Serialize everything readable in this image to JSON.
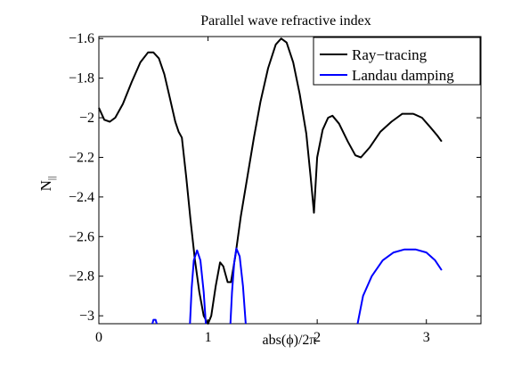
{
  "chart_data": {
    "type": "line",
    "title": "Parallel wave refractive index",
    "xlabel": "abs(ϕ)/2π",
    "ylabel_base": "N",
    "ylabel_sub": "||",
    "xlim": [
      0,
      3.5
    ],
    "ylim": [
      -3.04,
      -1.59
    ],
    "xticks": [
      0,
      1,
      2,
      3
    ],
    "xtick_labels": [
      "0",
      "1",
      "2",
      "3"
    ],
    "yticks": [
      -1.6,
      -1.8,
      -2.0,
      -2.2,
      -2.4,
      -2.6,
      -2.8,
      -3.0
    ],
    "ytick_labels": [
      "−1.6",
      "−1.8",
      "−2",
      "−2.2",
      "−2.4",
      "−2.6",
      "−2.8",
      "−3"
    ],
    "grid": false,
    "legend_position": "top-right",
    "series": [
      {
        "name": "Ray−tracing",
        "color": "#000000",
        "segments": [
          [
            [
              0.0,
              -1.95
            ],
            [
              0.05,
              -2.01
            ],
            [
              0.1,
              -2.02
            ],
            [
              0.15,
              -2.0
            ],
            [
              0.22,
              -1.93
            ],
            [
              0.3,
              -1.82
            ],
            [
              0.38,
              -1.72
            ],
            [
              0.45,
              -1.67
            ],
            [
              0.5,
              -1.67
            ],
            [
              0.55,
              -1.7
            ],
            [
              0.6,
              -1.78
            ],
            [
              0.65,
              -1.9
            ],
            [
              0.7,
              -2.02
            ],
            [
              0.73,
              -2.07
            ],
            [
              0.76,
              -2.1
            ],
            [
              0.8,
              -2.3
            ],
            [
              0.84,
              -2.52
            ],
            [
              0.88,
              -2.72
            ],
            [
              0.92,
              -2.88
            ],
            [
              0.96,
              -3.0
            ],
            [
              1.0,
              -3.04
            ],
            [
              1.03,
              -3.0
            ],
            [
              1.07,
              -2.85
            ],
            [
              1.11,
              -2.73
            ],
            [
              1.14,
              -2.75
            ],
            [
              1.18,
              -2.83
            ],
            [
              1.21,
              -2.83
            ],
            [
              1.25,
              -2.7
            ],
            [
              1.3,
              -2.5
            ],
            [
              1.36,
              -2.3
            ],
            [
              1.42,
              -2.1
            ],
            [
              1.48,
              -1.92
            ],
            [
              1.55,
              -1.75
            ],
            [
              1.62,
              -1.63
            ],
            [
              1.67,
              -1.6
            ],
            [
              1.72,
              -1.62
            ],
            [
              1.78,
              -1.72
            ],
            [
              1.84,
              -1.88
            ],
            [
              1.9,
              -2.08
            ],
            [
              1.94,
              -2.3
            ],
            [
              1.97,
              -2.48
            ],
            [
              2.0,
              -2.2
            ],
            [
              2.05,
              -2.06
            ],
            [
              2.1,
              -2.0
            ],
            [
              2.14,
              -1.99
            ],
            [
              2.2,
              -2.03
            ],
            [
              2.28,
              -2.12
            ],
            [
              2.35,
              -2.19
            ],
            [
              2.4,
              -2.2
            ],
            [
              2.48,
              -2.15
            ],
            [
              2.58,
              -2.07
            ],
            [
              2.68,
              -2.02
            ],
            [
              2.78,
              -1.98
            ],
            [
              2.88,
              -1.98
            ],
            [
              2.96,
              -2.0
            ],
            [
              3.04,
              -2.05
            ],
            [
              3.1,
              -2.09
            ],
            [
              3.14,
              -2.12
            ]
          ]
        ]
      },
      {
        "name": "Landau damping",
        "color": "#0000ff",
        "segments": [
          [
            [
              0.49,
              -3.04
            ],
            [
              0.5,
              -3.02
            ],
            [
              0.52,
              -3.02
            ],
            [
              0.53,
              -3.04
            ]
          ],
          [
            [
              0.835,
              -3.04
            ],
            [
              0.85,
              -2.86
            ],
            [
              0.87,
              -2.72
            ],
            [
              0.9,
              -2.67
            ],
            [
              0.93,
              -2.72
            ],
            [
              0.96,
              -2.88
            ],
            [
              0.98,
              -3.04
            ]
          ],
          [
            [
              1.205,
              -3.04
            ],
            [
              1.22,
              -2.88
            ],
            [
              1.24,
              -2.73
            ],
            [
              1.26,
              -2.66
            ],
            [
              1.29,
              -2.7
            ],
            [
              1.32,
              -2.85
            ],
            [
              1.345,
              -3.04
            ]
          ],
          [
            [
              2.37,
              -3.04
            ],
            [
              2.42,
              -2.9
            ],
            [
              2.5,
              -2.8
            ],
            [
              2.6,
              -2.72
            ],
            [
              2.7,
              -2.68
            ],
            [
              2.8,
              -2.665
            ],
            [
              2.9,
              -2.665
            ],
            [
              3.0,
              -2.68
            ],
            [
              3.08,
              -2.72
            ],
            [
              3.14,
              -2.77
            ]
          ]
        ]
      }
    ]
  }
}
